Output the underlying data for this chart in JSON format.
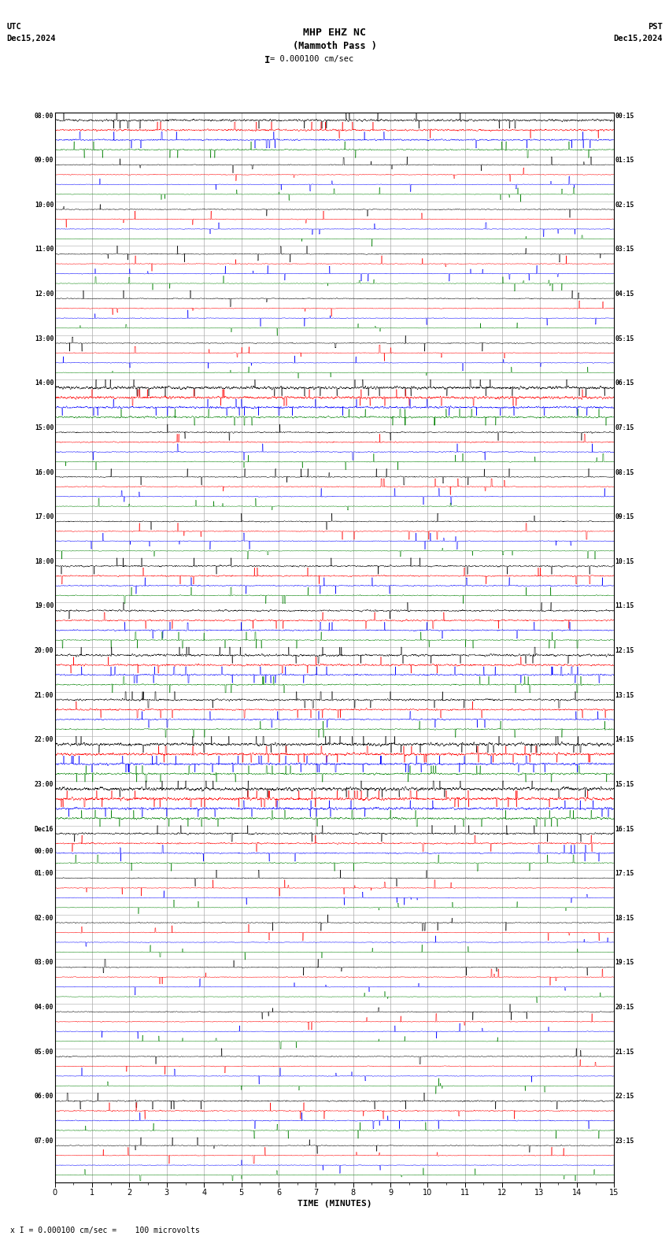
{
  "title_line1": "MHP EHZ NC",
  "title_line2": "(Mammoth Pass )",
  "scale_text": "= 0.000100 cm/sec",
  "scale_bar": "I",
  "utc_label": "UTC",
  "utc_date": "Dec15,2024",
  "pst_label": "PST",
  "pst_date": "Dec15,2024",
  "xlabel": "TIME (MINUTES)",
  "footer_text": "x I = 0.000100 cm/sec =    100 microvolts",
  "left_times": [
    "08:00",
    "09:00",
    "10:00",
    "11:00",
    "12:00",
    "13:00",
    "14:00",
    "15:00",
    "16:00",
    "17:00",
    "18:00",
    "19:00",
    "20:00",
    "21:00",
    "22:00",
    "23:00",
    "Dec16\n00:00",
    "01:00",
    "02:00",
    "03:00",
    "04:00",
    "05:00",
    "06:00",
    "07:00"
  ],
  "right_times": [
    "00:15",
    "01:15",
    "02:15",
    "03:15",
    "04:15",
    "05:15",
    "06:15",
    "07:15",
    "08:15",
    "09:15",
    "10:15",
    "11:15",
    "12:15",
    "13:15",
    "14:15",
    "15:15",
    "16:15",
    "17:15",
    "18:15",
    "19:15",
    "20:15",
    "21:15",
    "22:15",
    "23:15"
  ],
  "n_rows": 24,
  "n_channels": 4,
  "colors": [
    "black",
    "red",
    "blue",
    "green"
  ],
  "background_color": "white",
  "grid_color": "#aaaaaa",
  "xmin": 0,
  "xmax": 15,
  "xticks": [
    0,
    1,
    2,
    3,
    4,
    5,
    6,
    7,
    8,
    9,
    10,
    11,
    12,
    13,
    14,
    15
  ],
  "row_activity": [
    2.5,
    1.0,
    1.0,
    1.0,
    1.0,
    1.0,
    3.5,
    1.5,
    1.2,
    1.2,
    1.8,
    2.0,
    2.5,
    2.2,
    3.5,
    4.0,
    2.0,
    1.0,
    1.0,
    1.0,
    1.0,
    1.0,
    1.5,
    1.0
  ],
  "ch_base_amp": [
    0.012,
    0.01,
    0.008,
    0.007
  ],
  "lw": 0.35
}
